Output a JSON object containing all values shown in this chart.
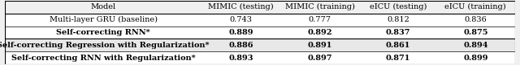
{
  "columns": [
    "Model",
    "MIMIC (testing)",
    "MIMIC (training)",
    "eICU (testing)",
    "eICU (training)"
  ],
  "rows": [
    {
      "model": "Multi-layer GRU (baseline)",
      "bold": false,
      "values": [
        "0.743",
        "0.777",
        "0.812",
        "0.836"
      ]
    },
    {
      "model": "Self-correcting RNN*",
      "bold": true,
      "values": [
        "0.889",
        "0.892",
        "0.837",
        "0.875"
      ]
    },
    {
      "model": "Self-correcting Regression with Regularization*",
      "bold": true,
      "values": [
        "0.886",
        "0.891",
        "0.861",
        "0.894"
      ]
    },
    {
      "model": "Self-correcting RNN with Regularization*",
      "bold": true,
      "values": [
        "0.893",
        "0.897",
        "0.871",
        "0.899"
      ]
    }
  ],
  "background_color": "#f0f0f0",
  "row_colors": [
    "#ffffff",
    "#ffffff",
    "#e8e8e8",
    "#ffffff"
  ],
  "figsize": [
    6.4,
    0.81
  ],
  "dpi": 100,
  "fontsize": 7.0,
  "header_fontsize": 7.0
}
